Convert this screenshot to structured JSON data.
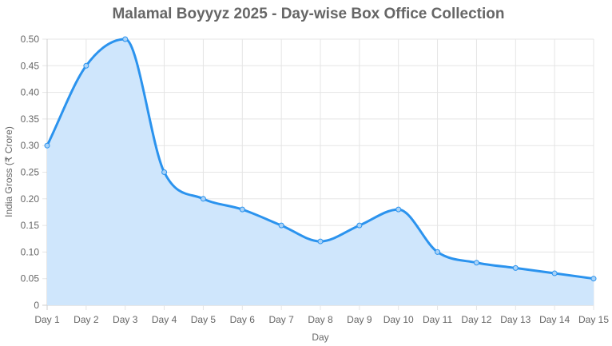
{
  "chart_data": {
    "type": "area",
    "title": "Malamal Boyyyz 2025 - Day-wise Box Office Collection",
    "xlabel": "Day",
    "ylabel": "India Gross (₹ Crore)",
    "categories": [
      "Day 1",
      "Day 2",
      "Day 3",
      "Day 4",
      "Day 5",
      "Day 6",
      "Day 7",
      "Day 8",
      "Day 9",
      "Day 10",
      "Day 11",
      "Day 12",
      "Day 13",
      "Day 14",
      "Day 15"
    ],
    "series": [
      {
        "values": [
          0.3,
          0.45,
          0.5,
          0.25,
          0.2,
          0.18,
          0.15,
          0.12,
          0.15,
          0.18,
          0.1,
          0.08,
          0.07,
          0.06,
          0.05
        ]
      }
    ],
    "ylim": [
      0,
      0.5
    ],
    "yticks": [
      "0",
      "0.05",
      "0.10",
      "0.15",
      "0.20",
      "0.25",
      "0.30",
      "0.35",
      "0.40",
      "0.45",
      "0.50"
    ],
    "grid": true,
    "legend": "none",
    "colors": {
      "line": "#2b93ee",
      "fill": "#cfe6fc",
      "point_fill": "#a9d2f7",
      "grid": "#e5e5e5",
      "text": "#666666"
    }
  }
}
